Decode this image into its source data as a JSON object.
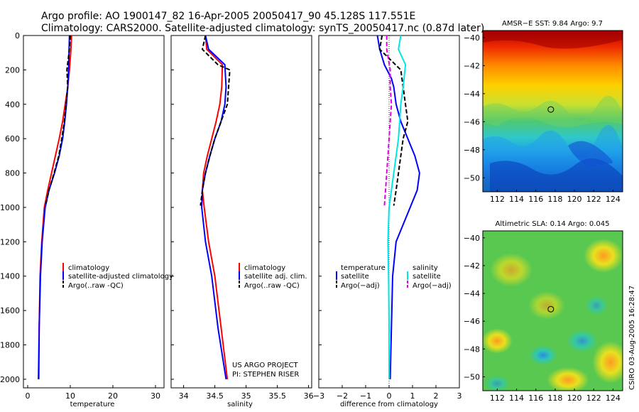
{
  "header": {
    "line1": "Argo profile: AO 1900147_82 16-Apr-2005 20050417_90 45.128S 117.551E",
    "line2": "Climatology: CARS2000. Satellite-adjusted climatology: synTS_20050417.nc (0.87d later)"
  },
  "side_text": "CSIRO 03-Aug-2005 16:28:47",
  "project_credit": [
    "US ARGO PROJECT",
    "PI: STEPHEN RISER"
  ],
  "colors": {
    "climatology": "#ff0000",
    "satellite": "#0000ff",
    "argo": "#000000",
    "salinity_diff": "#00e5e5",
    "salinity_argo_diff": "#e000e0"
  },
  "chart_data": [
    {
      "type": "line",
      "xlabel": "temperature",
      "xlim": [
        -1,
        32
      ],
      "ylim": [
        2050,
        0
      ],
      "xticks": [
        0,
        10,
        20,
        30
      ],
      "yticks": [
        0,
        200,
        400,
        600,
        800,
        1000,
        1200,
        1400,
        1600,
        1800,
        2000
      ],
      "legend": [
        "climatology",
        "satellite-adjusted climatology",
        "Argo(..raw -QC)"
      ],
      "legend_position": "lower-right",
      "series": [
        {
          "name": "climatology",
          "color": "#ff0000",
          "style": "solid",
          "x": [
            10.3,
            10.1,
            9.8,
            9.4,
            8.8,
            8.2,
            7.4,
            6.5,
            5.6,
            4.7,
            3.9,
            3.3,
            2.9,
            2.7,
            2.5
          ],
          "y": [
            0,
            100,
            200,
            300,
            400,
            500,
            600,
            700,
            800,
            900,
            1000,
            1200,
            1400,
            1700,
            2000
          ]
        },
        {
          "name": "satellite-adjusted climatology",
          "color": "#0000ff",
          "style": "solid",
          "x": [
            9.8,
            9.7,
            9.6,
            9.4,
            9.1,
            8.7,
            8.2,
            7.4,
            6.3,
            5.0,
            4.1,
            3.4,
            3.0,
            2.7,
            2.6
          ],
          "y": [
            0,
            100,
            200,
            300,
            400,
            500,
            600,
            700,
            800,
            900,
            1000,
            1200,
            1400,
            1700,
            2000
          ]
        },
        {
          "name": "Argo(..raw -QC)",
          "color": "#000000",
          "style": "dashed",
          "x": [
            10.0,
            9.7,
            9.2,
            9.4,
            9.0,
            8.6,
            8.0,
            7.3,
            6.2,
            5.0,
            4.2
          ],
          "y": [
            0,
            100,
            200,
            300,
            400,
            500,
            600,
            700,
            800,
            900,
            990
          ]
        }
      ]
    },
    {
      "type": "line",
      "xlabel": "salinity",
      "xlim": [
        33.8,
        36.05
      ],
      "ylim": [
        2050,
        0
      ],
      "xticks": [
        34,
        34.5,
        35,
        35.5,
        36
      ],
      "legend": [
        "climatology",
        "satellite adj. clim.",
        "Argo(..raw -QC)"
      ],
      "legend_position": "lower-right",
      "series": [
        {
          "name": "climatology",
          "color": "#ff0000",
          "style": "solid",
          "x": [
            34.35,
            34.37,
            34.62,
            34.61,
            34.58,
            34.52,
            34.45,
            34.38,
            34.32,
            34.3,
            34.33,
            34.4,
            34.5,
            34.6,
            34.7
          ],
          "y": [
            0,
            80,
            170,
            300,
            400,
            500,
            600,
            700,
            800,
            900,
            1000,
            1200,
            1400,
            1700,
            2000
          ]
        },
        {
          "name": "satellite adj. clim.",
          "color": "#0000ff",
          "style": "solid",
          "x": [
            34.35,
            34.4,
            34.66,
            34.68,
            34.66,
            34.6,
            34.5,
            34.42,
            34.35,
            34.3,
            34.29,
            34.35,
            34.45,
            34.55,
            34.68
          ],
          "y": [
            0,
            80,
            170,
            300,
            400,
            500,
            600,
            700,
            800,
            900,
            1000,
            1200,
            1400,
            1700,
            2000
          ]
        },
        {
          "name": "Argo(..raw -QC)",
          "color": "#000000",
          "style": "dashed",
          "x": [
            34.35,
            34.3,
            34.55,
            34.74,
            34.7,
            34.6,
            34.5,
            34.42,
            34.35,
            34.3,
            34.27
          ],
          "y": [
            0,
            80,
            170,
            200,
            400,
            500,
            600,
            700,
            800,
            900,
            990
          ]
        }
      ]
    },
    {
      "type": "line",
      "xlabel": "difference from climatology",
      "xlim": [
        -3,
        3
      ],
      "ylim": [
        2050,
        0
      ],
      "xticks": [
        -3,
        -2,
        -1,
        0,
        1,
        2,
        3
      ],
      "legend_groups": [
        {
          "title": "temperature",
          "entries": [
            "satellite",
            "Argo(−adj)"
          ]
        },
        {
          "title": "salinity",
          "entries": [
            "satellite",
            "Argo(−adj)"
          ]
        }
      ],
      "legend_position": "lower-right",
      "series": [
        {
          "name": "temperature satellite",
          "color": "#0000ff",
          "style": "solid",
          "x": [
            -0.5,
            -0.4,
            -0.2,
            0.1,
            0.2,
            0.3,
            0.5,
            0.8,
            1.1,
            1.3,
            1.2,
            0.9,
            0.6,
            0.3,
            0.15,
            0.1,
            0.05
          ],
          "y": [
            0,
            80,
            170,
            250,
            300,
            400,
            500,
            600,
            700,
            800,
            900,
            1000,
            1100,
            1200,
            1400,
            1700,
            2000
          ]
        },
        {
          "name": "temperature Argo(−adj)",
          "color": "#000000",
          "style": "dashed",
          "x": [
            -0.3,
            -0.4,
            0.5,
            0.6,
            0.7,
            0.8,
            0.6,
            0.5,
            0.4,
            0.3,
            0.2
          ],
          "y": [
            0,
            80,
            200,
            300,
            400,
            500,
            600,
            700,
            800,
            900,
            990
          ]
        },
        {
          "name": "salinity satellite",
          "color": "#00e5e5",
          "style": "solid",
          "x": [
            0.5,
            0.4,
            0.7,
            0.6,
            0.5,
            0.45,
            0.4,
            0.3,
            0.2,
            0.1,
            0.0,
            -0.05,
            -0.02,
            0.0,
            0.0
          ],
          "y": [
            0,
            80,
            170,
            300,
            400,
            500,
            600,
            700,
            800,
            900,
            1000,
            1200,
            1400,
            1700,
            2000
          ]
        },
        {
          "name": "salinity Argo(−adj)",
          "color": "#e000e0",
          "style": "dashed",
          "x": [
            -0.1,
            -0.1,
            0.05,
            0.05,
            0.1,
            0.05,
            0.0,
            -0.05,
            -0.1,
            -0.15,
            -0.2
          ],
          "y": [
            0,
            80,
            200,
            300,
            400,
            500,
            600,
            700,
            800,
            900,
            990
          ]
        }
      ]
    },
    {
      "type": "heatmap",
      "title": "AMSR−E SST: 9.84 Argo: 9.7",
      "xlim": [
        110.5,
        125
      ],
      "ylim": [
        -51,
        -39.5
      ],
      "xticks": [
        112,
        114,
        116,
        118,
        120,
        122,
        124
      ],
      "yticks": [
        -40,
        -42,
        -44,
        -46,
        -48,
        -50
      ],
      "marker": {
        "lon": 117.55,
        "lat": -45.13
      }
    },
    {
      "type": "heatmap",
      "title": "Altimetric SLA: 0.14 Argo: 0.045",
      "xlim": [
        110.5,
        125
      ],
      "ylim": [
        -51,
        -39.5
      ],
      "xticks": [
        112,
        114,
        116,
        118,
        120,
        122,
        124
      ],
      "yticks": [
        -40,
        -42,
        -44,
        -46,
        -48,
        -50
      ],
      "marker": {
        "lon": 117.55,
        "lat": -45.13
      }
    }
  ]
}
